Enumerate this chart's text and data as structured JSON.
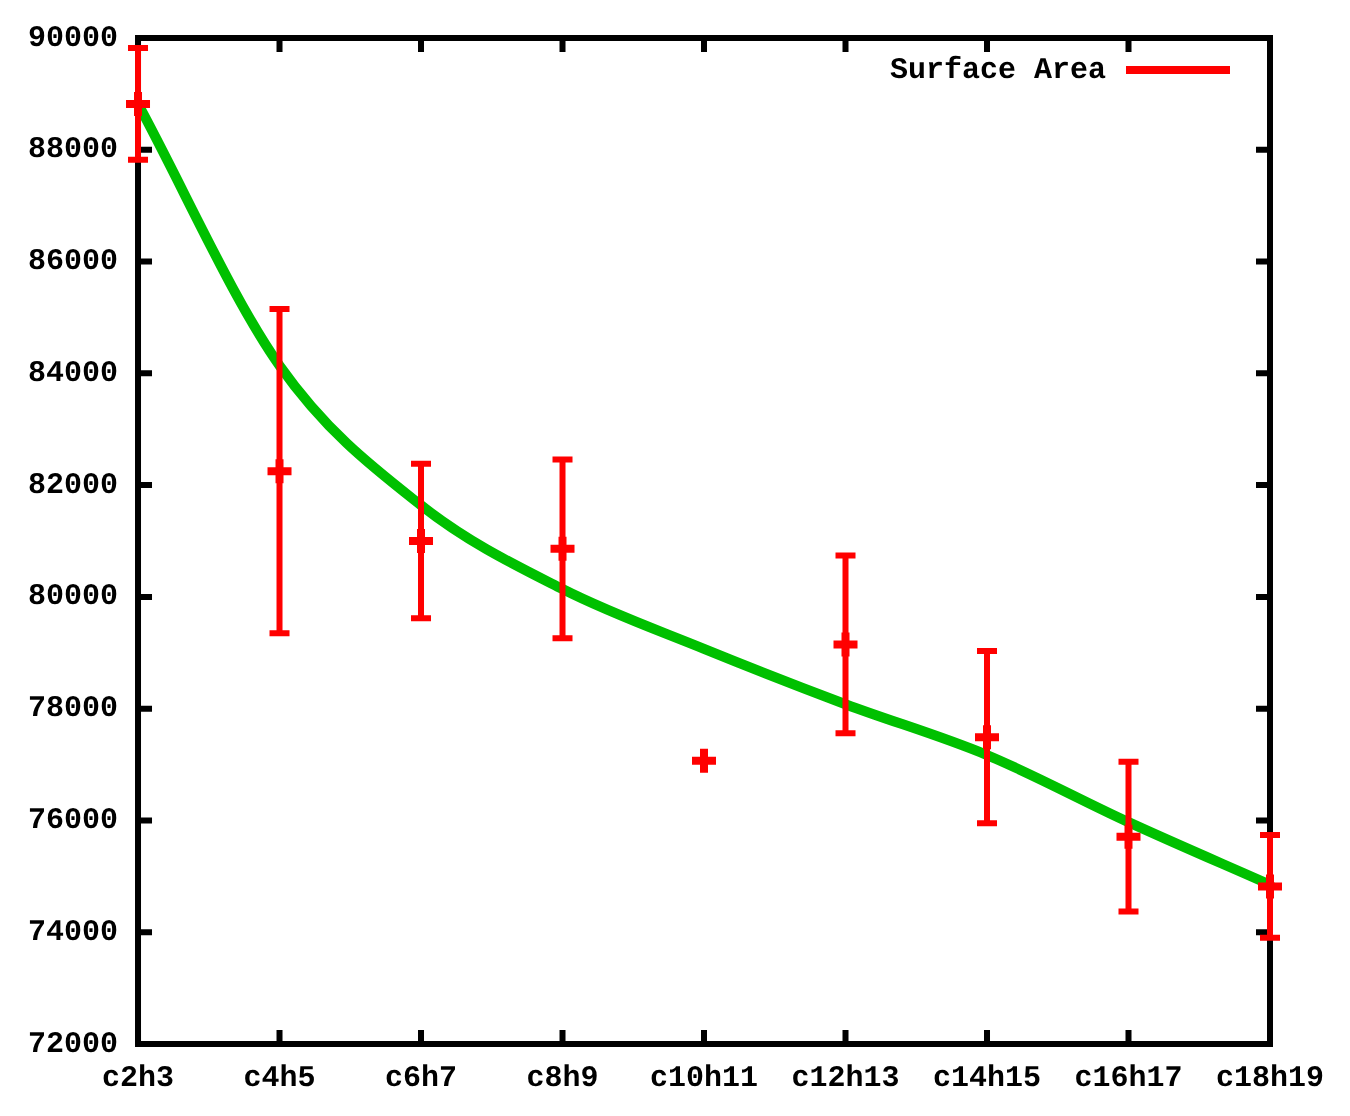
{
  "chart_data": {
    "type": "scatter",
    "categories": [
      "c2h3",
      "c4h5",
      "c6h7",
      "c8h9",
      "c10h11",
      "c12h13",
      "c14h15",
      "c16h17",
      "c18h19"
    ],
    "series": [
      {
        "name": "Surface Area",
        "marker": "cross",
        "color": "#ff0000",
        "values": [
          88820,
          82250,
          81000,
          80860,
          77070,
          79150,
          77490,
          75710,
          74820
        ],
        "errors": [
          1000,
          2900,
          1380,
          1600,
          null,
          1590,
          1540,
          1340,
          920
        ]
      },
      {
        "type": "line",
        "color": "#00c000",
        "values": [
          88820,
          84140,
          81640,
          80140,
          79070,
          78080,
          77170,
          75970,
          74850
        ]
      }
    ],
    "ylim": [
      72000,
      90000
    ],
    "yticks": [
      72000,
      74000,
      76000,
      78000,
      80000,
      82000,
      84000,
      86000,
      88000,
      90000
    ],
    "grid": false,
    "legend": "top right"
  }
}
